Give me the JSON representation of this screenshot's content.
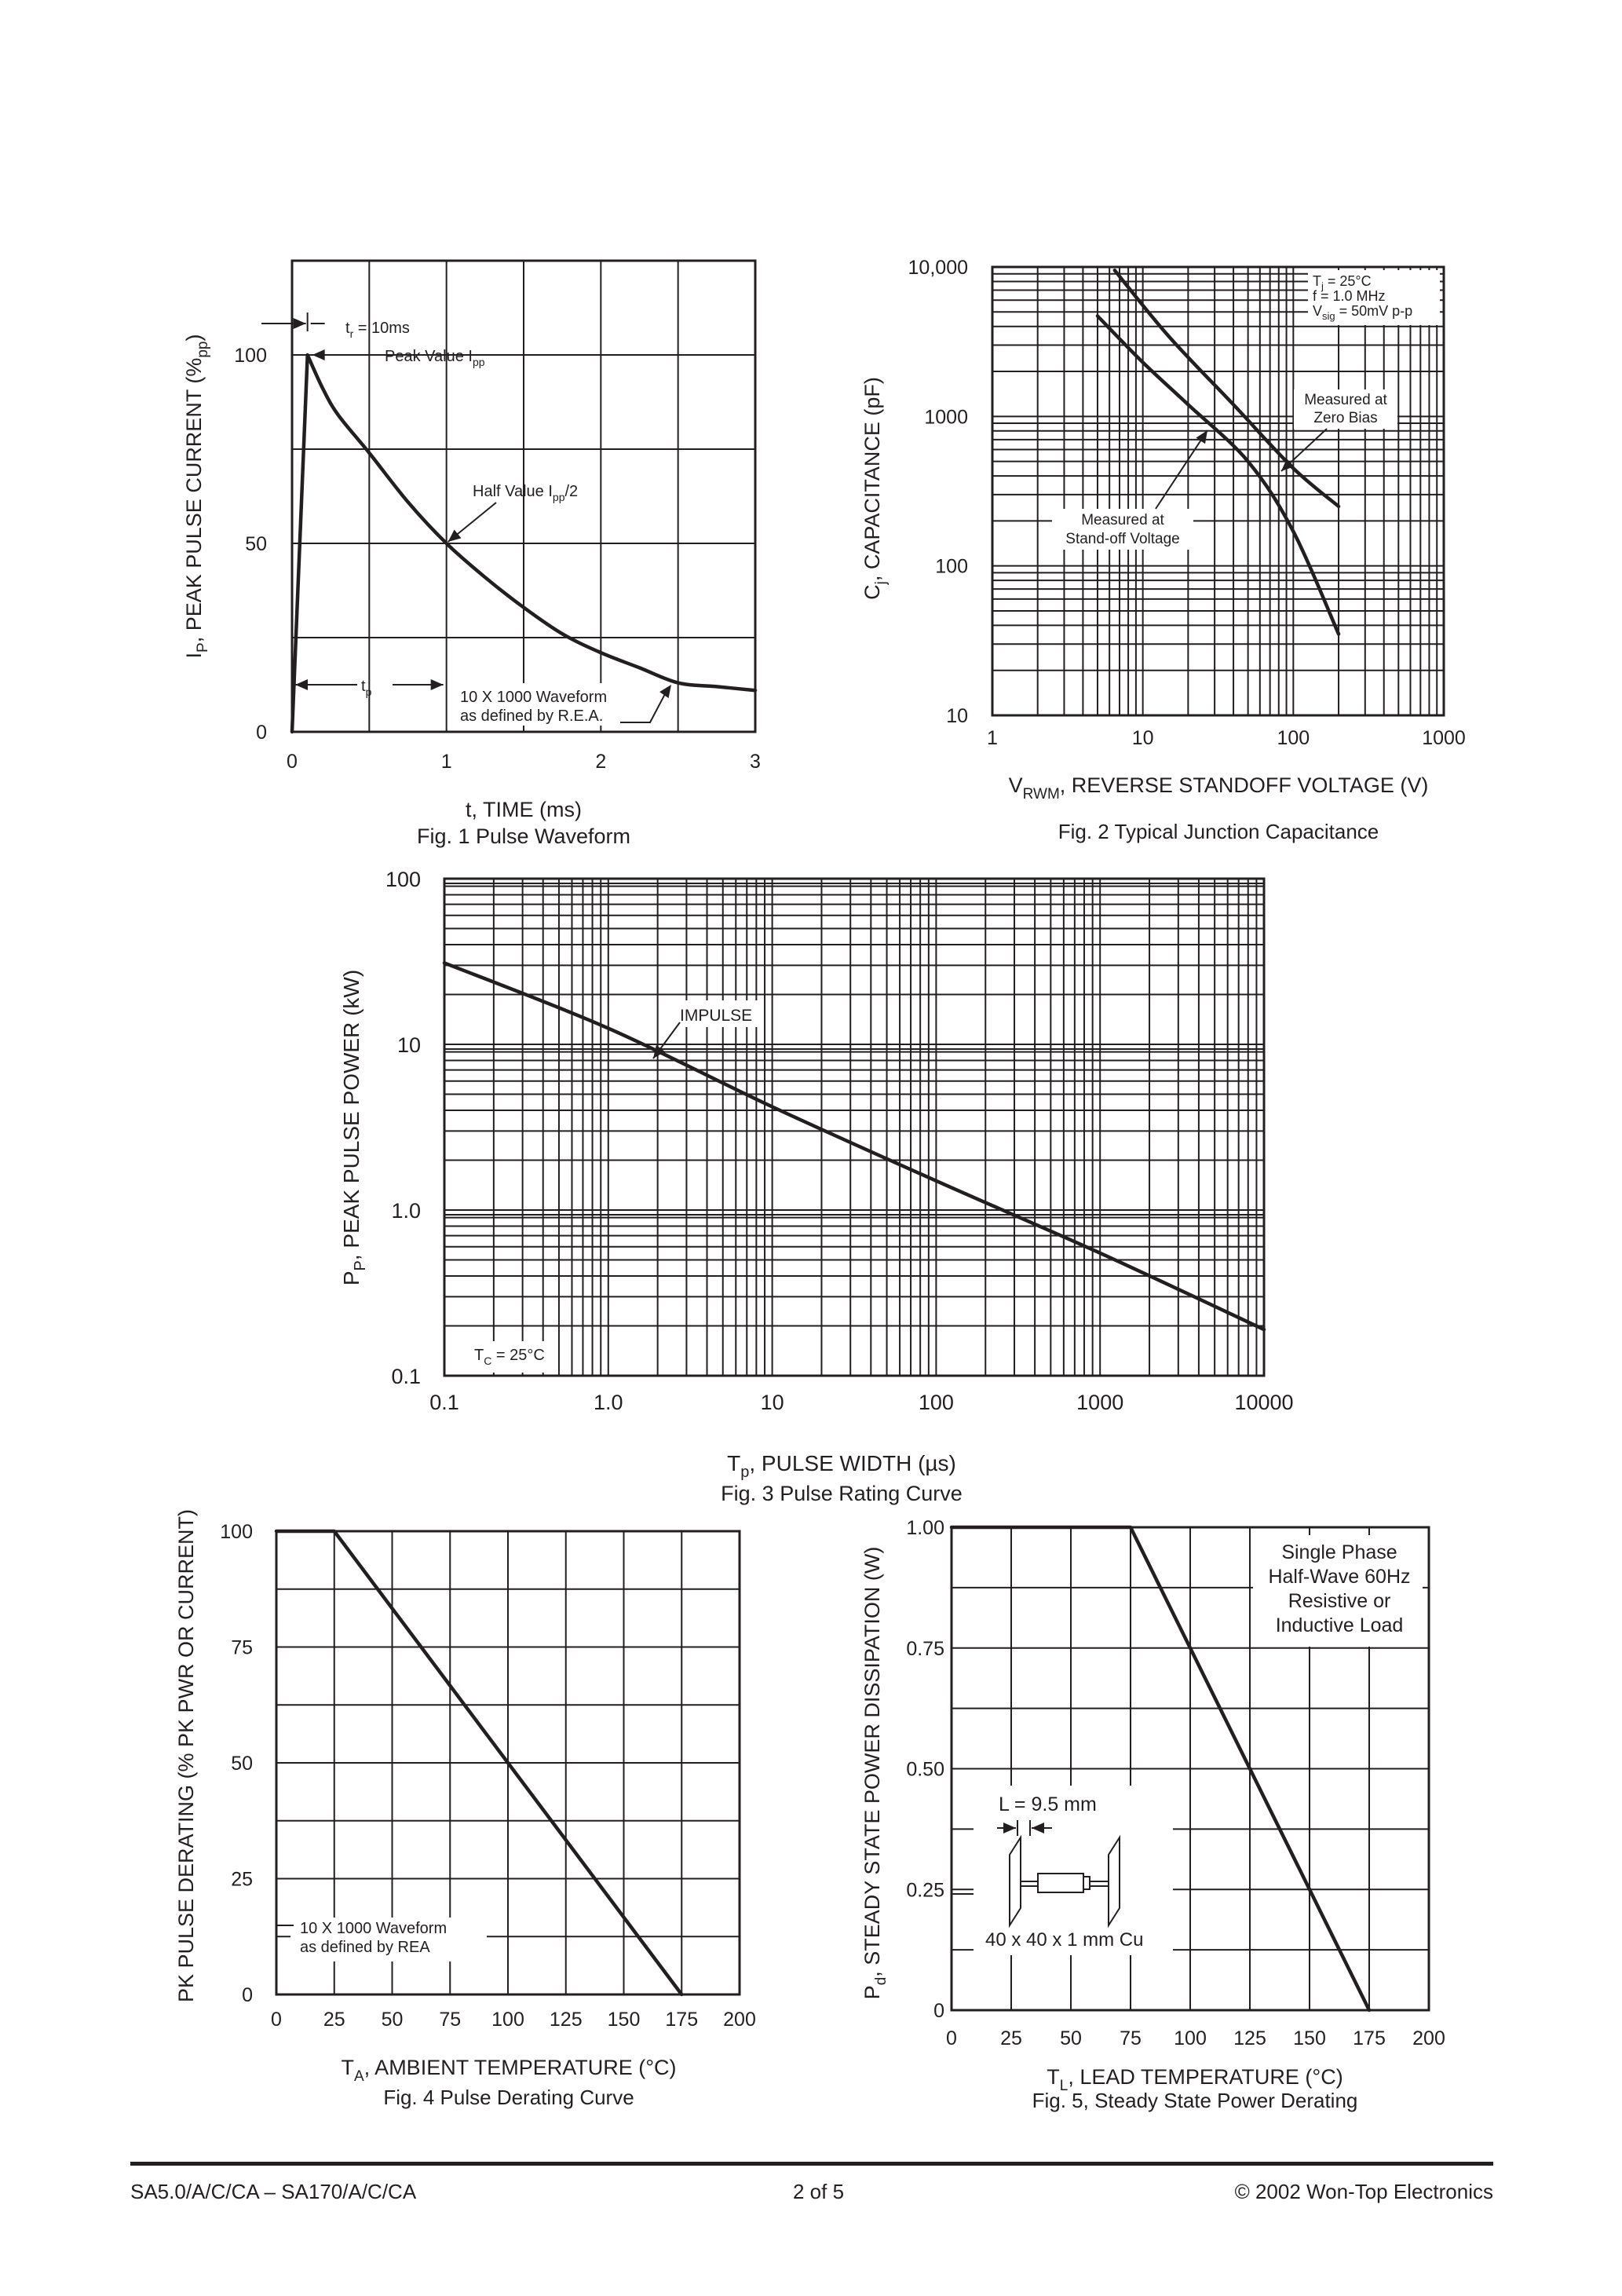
{
  "footer": {
    "left": "SA5.0/A/C/CA – SA170/A/C/CA",
    "center": "2 of 5",
    "right": "© 2002 Won-Top Electronics"
  },
  "chart_data": [
    {
      "id": "fig1",
      "type": "line",
      "title": "Fig. 1  Pulse Waveform",
      "xlabel": "t, TIME (ms)",
      "ylabel": {
        "main": "I",
        "sub": "P",
        "rest": ", PEAK PULSE CURRENT (%",
        "sub2": "pp",
        "end": ")"
      },
      "xlim": [
        0,
        3
      ],
      "ylim": [
        0,
        125
      ],
      "x_ticks": [
        0,
        1,
        2,
        3
      ],
      "y_ticks": [
        0,
        50,
        100
      ],
      "series": [
        {
          "x": [
            0,
            0.1,
            0.2,
            0.3,
            0.5,
            0.75,
            1.0,
            1.25,
            1.5,
            1.75,
            2.0,
            2.25,
            2.5,
            2.75,
            3.0
          ],
          "y": [
            0,
            100,
            91,
            84,
            74,
            61,
            50,
            41,
            33,
            26,
            21,
            17,
            13,
            12,
            11
          ]
        }
      ],
      "annotations": {
        "tr": {
          "pre": "t",
          "sub": "r",
          "post": " = 10ms"
        },
        "peak": {
          "pre": "Peak Value I",
          "sub": "pp",
          "post": ""
        },
        "half": {
          "pre": "Half Value I",
          "sub": "pp",
          "post": "/2"
        },
        "tp": {
          "pre": "t",
          "sub": "p",
          "post": ""
        },
        "waveform": [
          "10 X 1000 Waveform",
          "as defined by R.E.A."
        ]
      }
    },
    {
      "id": "fig2",
      "type": "line",
      "title": "Fig. 2 Typical Junction Capacitance",
      "xlabel": {
        "pre": "V",
        "sub": "RWM",
        "post": ", REVERSE STANDOFF VOLTAGE (V)"
      },
      "ylabel": {
        "pre": "C",
        "sub": "j",
        "post": ", CAPACITANCE (pF)"
      },
      "x_scale": "log",
      "y_scale": "log",
      "xlim": [
        1,
        1000
      ],
      "ylim": [
        10,
        10000
      ],
      "x_tick_labels": [
        "1",
        "10",
        "100",
        "1000"
      ],
      "y_tick_labels": [
        "10",
        "100",
        "1000",
        "10,000"
      ],
      "series": [
        {
          "name": "Measured at Zero Bias",
          "x": [
            6.5,
            15,
            40,
            100,
            200
          ],
          "y": [
            9500,
            3400,
            1200,
            450,
            250
          ]
        },
        {
          "name": "Measured at Stand-off Voltage",
          "x": [
            5,
            10,
            20,
            50,
            100,
            200
          ],
          "y": [
            4700,
            2300,
            1200,
            500,
            170,
            35
          ]
        }
      ],
      "conditions": [
        {
          "pre": "T",
          "sub": "j",
          "post": " = 25°C"
        },
        {
          "pre": "f = 1.0 MHz",
          "sub": "",
          "post": ""
        },
        {
          "pre": "V",
          "sub": "sig",
          "post": " = 50mV p-p"
        }
      ],
      "labels": {
        "zero_bias": [
          "Measured at",
          "Zero Bias"
        ],
        "standoff": [
          "Measured at",
          "Stand-off Voltage"
        ]
      }
    },
    {
      "id": "fig3",
      "type": "line",
      "title": "Fig. 3 Pulse Rating Curve",
      "xlabel": {
        "pre": "T",
        "sub": "p",
        "post": ", PULSE WIDTH (µs)"
      },
      "ylabel": {
        "pre": "P",
        "sub": "P",
        "post": ", PEAK PULSE POWER (kW)"
      },
      "x_scale": "log",
      "y_scale": "log",
      "xlim": [
        0.1,
        10000
      ],
      "ylim": [
        0.1,
        100
      ],
      "x_tick_labels": [
        "0.1",
        "1.0",
        "10",
        "100",
        "1000",
        "10000"
      ],
      "y_tick_labels": [
        "0.1",
        "1.0",
        "10",
        "100"
      ],
      "series": [
        {
          "name": "IMPULSE",
          "x": [
            0.1,
            1,
            10,
            100,
            1000,
            10000
          ],
          "y": [
            31,
            12.5,
            4.2,
            1.5,
            0.55,
            0.19
          ]
        }
      ],
      "labels": {
        "impulse": "IMPULSE",
        "tc": {
          "pre": "T",
          "sub": "C",
          "post": " = 25°C"
        }
      }
    },
    {
      "id": "fig4",
      "type": "line",
      "title": "Fig. 4  Pulse Derating Curve",
      "xlabel": {
        "pre": "T",
        "sub": "A",
        "post": ", AMBIENT TEMPERATURE (°C)"
      },
      "ylabel": "PK PULSE DERATING (% PK PWR OR CURRENT)",
      "xlim": [
        0,
        200
      ],
      "ylim": [
        0,
        100
      ],
      "x_ticks": [
        0,
        25,
        50,
        75,
        100,
        125,
        150,
        175,
        200
      ],
      "y_ticks": [
        0,
        25,
        50,
        75,
        100
      ],
      "series": [
        {
          "x": [
            0,
            25,
            175
          ],
          "y": [
            100,
            100,
            0
          ]
        }
      ],
      "labels": {
        "waveform": [
          "10 X 1000 Waveform",
          "as defined by REA"
        ]
      }
    },
    {
      "id": "fig5",
      "type": "line",
      "title": "Fig. 5, Steady State Power Derating",
      "xlabel": {
        "pre": "T",
        "sub": "L",
        "post": ", LEAD TEMPERATURE (°C)"
      },
      "ylabel": {
        "pre": "P",
        "sub": "d",
        "post": ", STEADY STATE POWER DISSIPATION (W)"
      },
      "xlim": [
        0,
        200
      ],
      "ylim": [
        0,
        1.0
      ],
      "x_ticks": [
        0,
        25,
        50,
        75,
        100,
        125,
        150,
        175,
        200
      ],
      "y_tick_labels": [
        "0",
        "0.25",
        "0.50",
        "0.75",
        "1.00"
      ],
      "y_ticks": [
        0,
        0.25,
        0.5,
        0.75,
        1.0
      ],
      "series": [
        {
          "x": [
            0,
            75,
            175
          ],
          "y": [
            1.0,
            1.0,
            0
          ]
        }
      ],
      "labels": {
        "load": [
          "Single Phase",
          "Half-Wave 60Hz",
          "Resistive or",
          "Inductive Load"
        ],
        "length": "L = 9.5 mm",
        "copper": "40 x 40 x 1 mm Cu"
      }
    }
  ]
}
